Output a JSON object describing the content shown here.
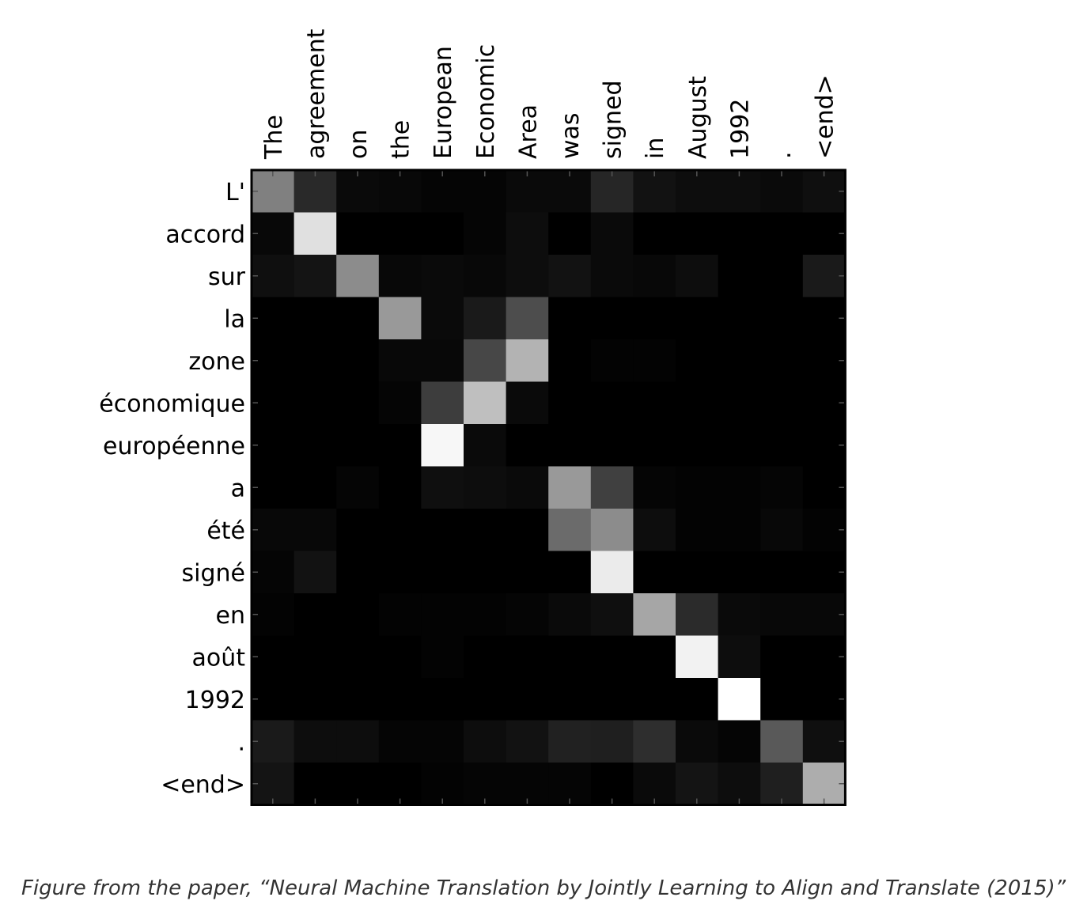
{
  "caption": "Figure from the paper, “Neural Machine Translation by Jointly Learning to Align and Translate (2015)”",
  "chart_data": {
    "type": "heatmap",
    "x_labels": [
      "The",
      "agreement",
      "on",
      "the",
      "European",
      "Economic",
      "Area",
      "was",
      "signed",
      "in",
      "August",
      "1992",
      ".",
      "<end>"
    ],
    "y_labels": [
      "L'",
      "accord",
      "sur",
      "la",
      "zone",
      "économique",
      "européenne",
      "a",
      "été",
      "signé",
      "en",
      "août",
      "1992",
      ".",
      "<end>"
    ],
    "colormap": "gray",
    "value_range": [
      0,
      1
    ],
    "values": [
      [
        0.5,
        0.16,
        0.04,
        0.03,
        0.02,
        0.02,
        0.04,
        0.04,
        0.15,
        0.07,
        0.05,
        0.05,
        0.04,
        0.06
      ],
      [
        0.03,
        0.88,
        0.0,
        0.0,
        0.0,
        0.02,
        0.05,
        0.0,
        0.04,
        0.0,
        0.0,
        0.0,
        0.0,
        0.0
      ],
      [
        0.06,
        0.08,
        0.55,
        0.03,
        0.04,
        0.03,
        0.05,
        0.07,
        0.04,
        0.03,
        0.05,
        0.0,
        0.0,
        0.1
      ],
      [
        0.0,
        0.0,
        0.0,
        0.6,
        0.04,
        0.1,
        0.3,
        0.0,
        0.0,
        0.0,
        0.0,
        0.0,
        0.0,
        0.0
      ],
      [
        0.0,
        0.0,
        0.0,
        0.03,
        0.03,
        0.28,
        0.7,
        0.0,
        0.01,
        0.01,
        0.0,
        0.0,
        0.0,
        0.0
      ],
      [
        0.0,
        0.0,
        0.0,
        0.02,
        0.24,
        0.75,
        0.04,
        0.0,
        0.0,
        0.0,
        0.0,
        0.0,
        0.0,
        0.0
      ],
      [
        0.0,
        0.0,
        0.0,
        0.0,
        0.97,
        0.04,
        0.0,
        0.0,
        0.0,
        0.0,
        0.0,
        0.0,
        0.0,
        0.0
      ],
      [
        0.0,
        0.0,
        0.02,
        0.0,
        0.06,
        0.05,
        0.04,
        0.6,
        0.25,
        0.02,
        0.01,
        0.01,
        0.02,
        0.0
      ],
      [
        0.03,
        0.03,
        0.0,
        0.0,
        0.0,
        0.0,
        0.0,
        0.42,
        0.55,
        0.05,
        0.01,
        0.01,
        0.03,
        0.01
      ],
      [
        0.02,
        0.07,
        0.0,
        0.0,
        0.0,
        0.0,
        0.0,
        0.0,
        0.92,
        0.0,
        0.0,
        0.0,
        0.0,
        0.0
      ],
      [
        0.01,
        0.0,
        0.0,
        0.01,
        0.01,
        0.01,
        0.02,
        0.04,
        0.06,
        0.65,
        0.17,
        0.04,
        0.03,
        0.03
      ],
      [
        0.0,
        0.0,
        0.0,
        0.0,
        0.01,
        0.0,
        0.0,
        0.0,
        0.0,
        0.0,
        0.95,
        0.05,
        0.0,
        0.0
      ],
      [
        0.0,
        0.0,
        0.0,
        0.0,
        0.0,
        0.0,
        0.0,
        0.0,
        0.0,
        0.0,
        0.0,
        1.0,
        0.0,
        0.0
      ],
      [
        0.1,
        0.05,
        0.05,
        0.02,
        0.02,
        0.05,
        0.07,
        0.13,
        0.12,
        0.18,
        0.04,
        0.02,
        0.35,
        0.06
      ],
      [
        0.08,
        0.0,
        0.0,
        0.0,
        0.01,
        0.02,
        0.02,
        0.02,
        0.0,
        0.04,
        0.08,
        0.05,
        0.12,
        0.68
      ]
    ]
  }
}
